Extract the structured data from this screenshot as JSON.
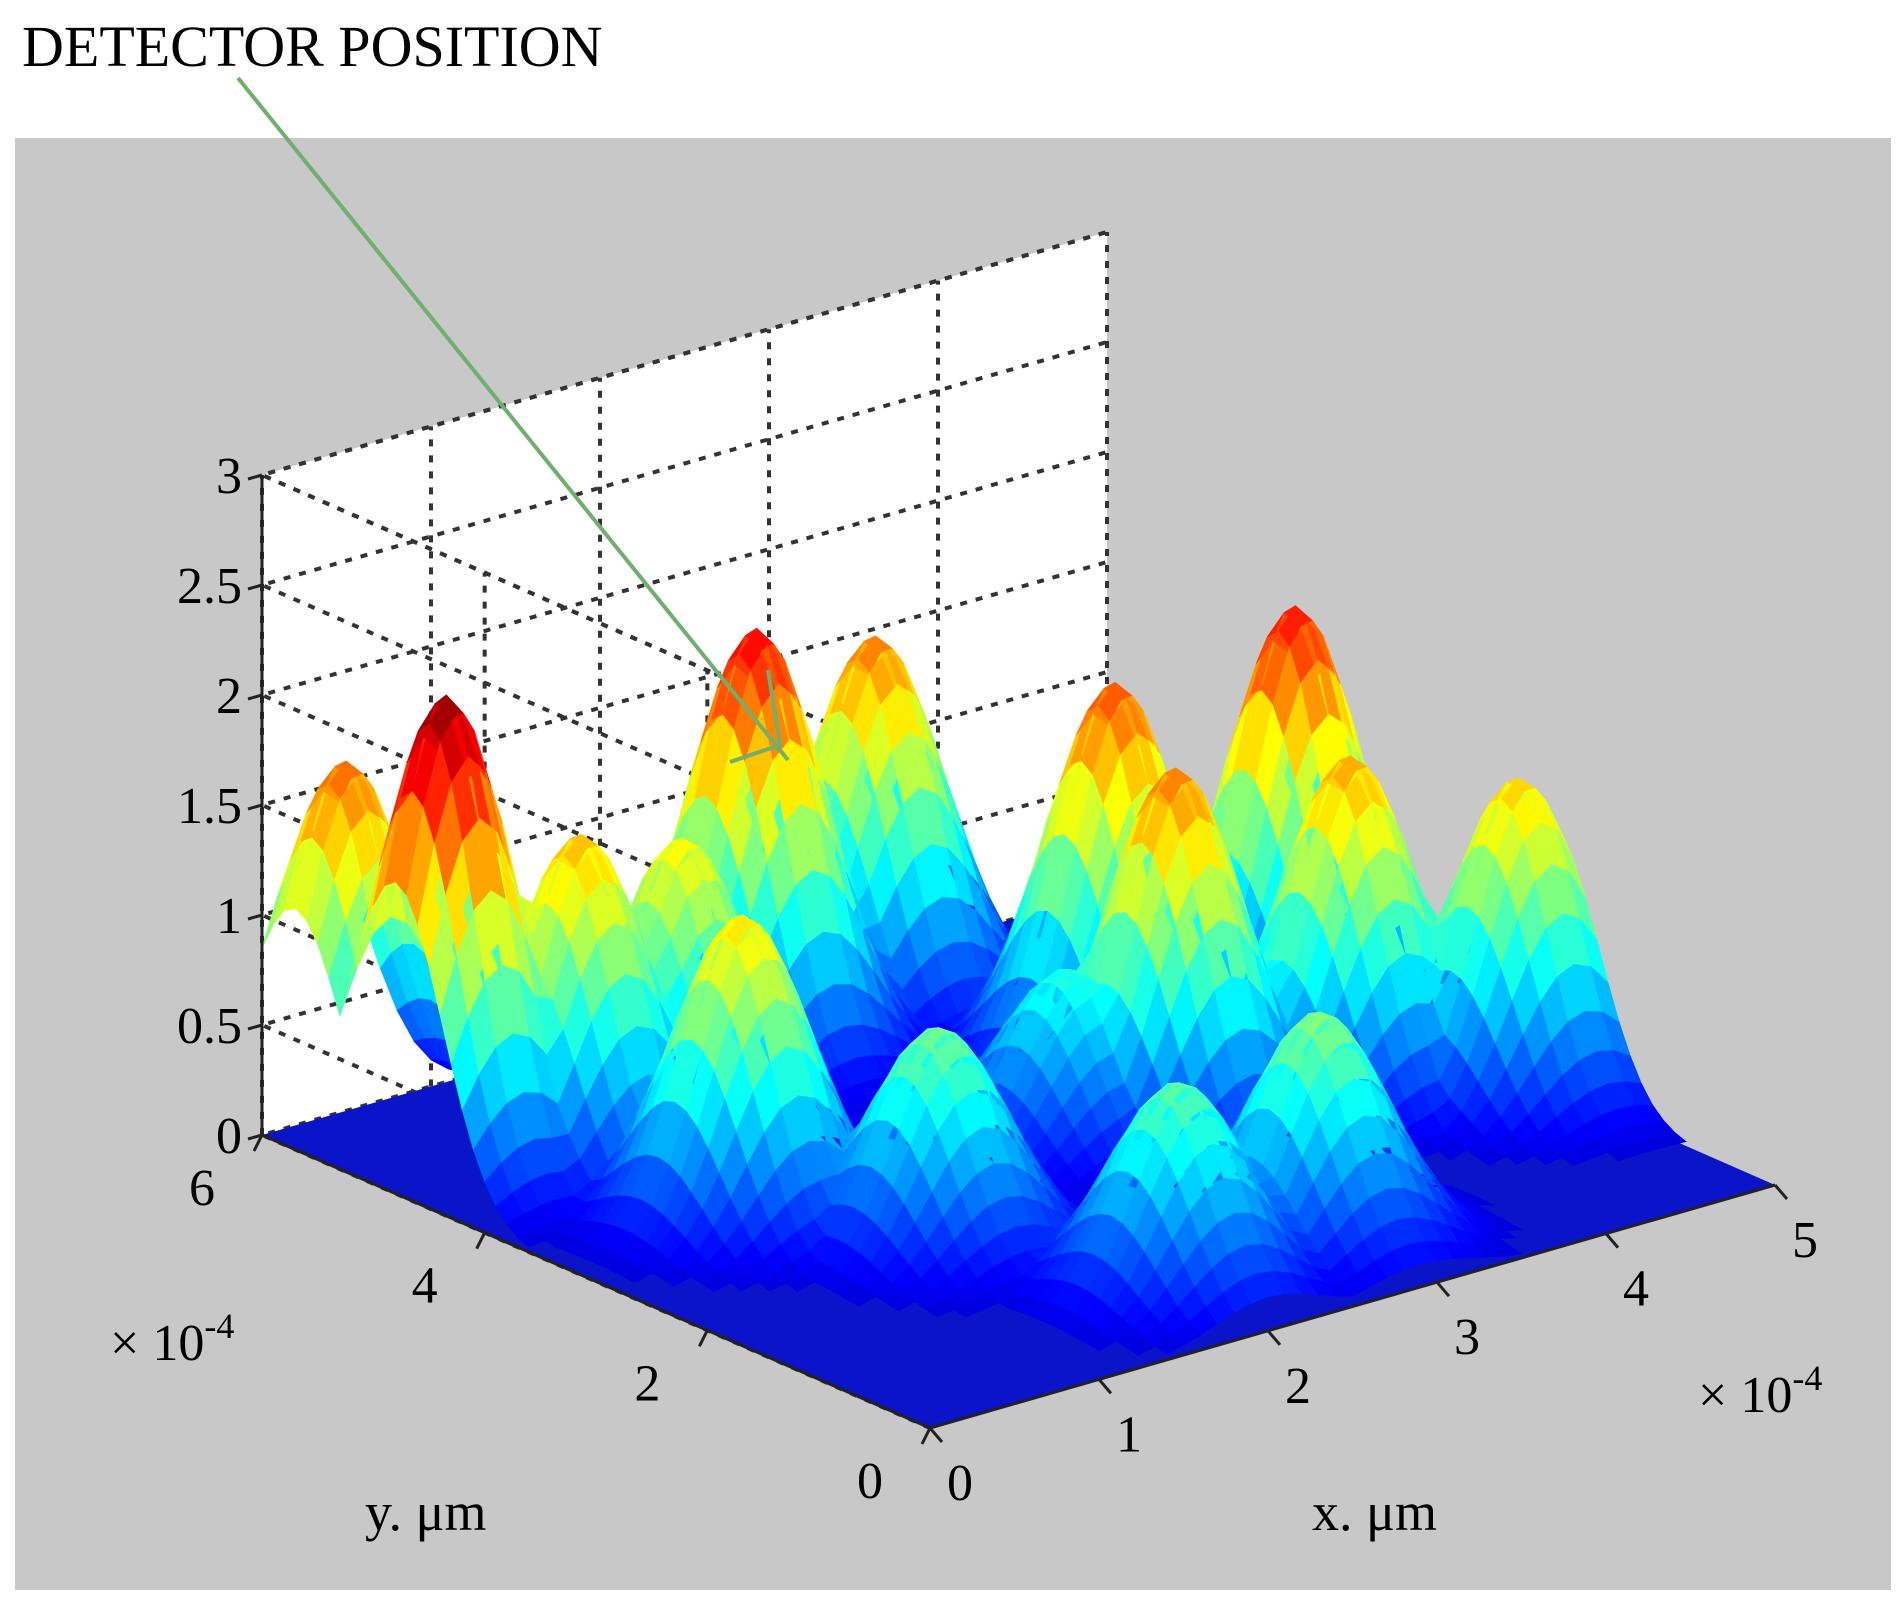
{
  "chart_data": {
    "type": "surface",
    "annotation": "DETECTOR POSITION",
    "xlabel": "x. μm",
    "ylabel": "y. μm",
    "x_ticks": [
      "0",
      "1",
      "2",
      "3",
      "4",
      "5"
    ],
    "y_ticks": [
      "0",
      "2",
      "4",
      "6"
    ],
    "z_ticks": [
      "0",
      "0.5",
      "1",
      "1.5",
      "2",
      "2.5",
      "3"
    ],
    "x_multiplier": "× 10",
    "y_multiplier": "× 10",
    "multiplier_exponent": "-4",
    "xlim": [
      0,
      5
    ],
    "ylim": [
      0,
      6
    ],
    "zlim": [
      0,
      3
    ],
    "grid": true,
    "colormap": "jet",
    "peaks": [
      {
        "x": 0.3,
        "y": 4.8,
        "z": 2.2
      },
      {
        "x": 0.3,
        "y": 5.7,
        "z": 1.7
      },
      {
        "x": 0.9,
        "y": 4.5,
        "z": 1.5
      },
      {
        "x": 1.5,
        "y": 4.5,
        "z": 1.35
      },
      {
        "x": 2.4,
        "y": 5.2,
        "z": 1.95
      },
      {
        "x": 3.3,
        "y": 5.5,
        "z": 1.65
      },
      {
        "x": 1.0,
        "y": 3.2,
        "z": 1.4
      },
      {
        "x": 1.5,
        "y": 2.2,
        "z": 1.0
      },
      {
        "x": 2.0,
        "y": 0.8,
        "z": 0.95
      },
      {
        "x": 2.9,
        "y": 0.9,
        "z": 1.05
      },
      {
        "x": 3.3,
        "y": 2.8,
        "z": 1.65
      },
      {
        "x": 3.6,
        "y": 3.8,
        "z": 1.75
      },
      {
        "x": 4.2,
        "y": 2.6,
        "z": 1.55
      },
      {
        "x": 4.6,
        "y": 3.7,
        "z": 1.9
      },
      {
        "x": 4.8,
        "y": 2.0,
        "z": 1.45
      },
      {
        "x": 2.8,
        "y": 3.0,
        "z": 0.8
      }
    ]
  },
  "colors": {
    "panel_background": "#c8c8c8",
    "axes_background": "#ffffff",
    "floor": "#0a14c8",
    "arrow": "#6fb06f"
  }
}
